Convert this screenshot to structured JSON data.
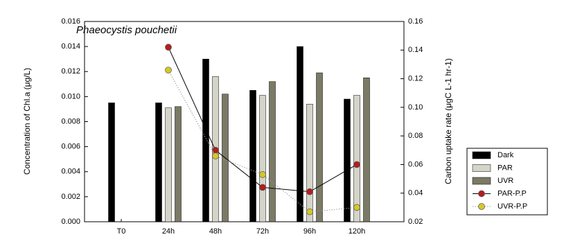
{
  "chart_data": {
    "type": "bar",
    "title": "Phaeocystis pouchetii",
    "y_label": "Concentration of Chl.a (μg/L)",
    "y2_label": "Carbon uptake rate (μgC L-1 hr-1)",
    "categories": [
      "T0",
      "24h",
      "48h",
      "72h",
      "96h",
      "120h"
    ],
    "series": [
      {
        "name": "Dark",
        "type": "bar",
        "color": "#000000",
        "values": [
          0.0095,
          0.0095,
          0.013,
          0.0105,
          0.014,
          0.0098
        ]
      },
      {
        "name": "PAR",
        "type": "bar",
        "color": "#d4d4c8",
        "values": [
          null,
          0.0091,
          0.0116,
          0.0101,
          0.0094,
          0.0101
        ]
      },
      {
        "name": "UVR",
        "type": "bar",
        "color": "#7a7a66",
        "values": [
          null,
          0.0092,
          0.0102,
          0.0112,
          0.0119,
          0.0115
        ]
      },
      {
        "name": "PAR-P.P",
        "type": "line",
        "axis": "y2",
        "color": "#b21e1e",
        "line_style": "solid",
        "values": [
          null,
          0.142,
          0.07,
          0.044,
          0.041,
          0.06
        ]
      },
      {
        "name": "UVR-P.P",
        "type": "line",
        "axis": "y2",
        "color": "#d4c828",
        "line_style": "dotted",
        "values": [
          null,
          0.126,
          0.066,
          0.053,
          0.027,
          0.03
        ]
      }
    ],
    "ylim": [
      0,
      0.016
    ],
    "yticks": [
      {
        "value": 0,
        "label": "0.000"
      },
      {
        "value": 0.002,
        "label": "0.002"
      },
      {
        "value": 0.004,
        "label": "0.004"
      },
      {
        "value": 0.006,
        "label": "0.006"
      },
      {
        "value": 0.008,
        "label": "0.008"
      },
      {
        "value": 0.01,
        "label": "0.010"
      },
      {
        "value": 0.012,
        "label": "0.012"
      },
      {
        "value": 0.014,
        "label": "0.014"
      },
      {
        "value": 0.016,
        "label": "0.016"
      }
    ],
    "y2lim": [
      0.02,
      0.16
    ],
    "y2ticks": [
      0.02,
      0.04,
      0.06,
      0.08,
      {
        "value": 0.1,
        "label": "0.10"
      },
      0.12,
      0.14,
      0.16
    ],
    "legend": "outside-right"
  }
}
